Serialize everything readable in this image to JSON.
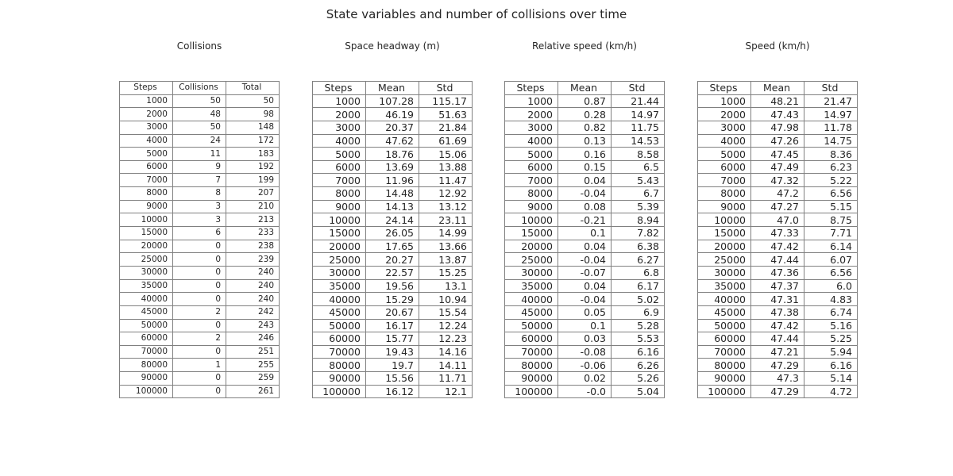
{
  "title": "State variables and number of collisions over time",
  "chart_data": [
    {
      "type": "table",
      "title": "Collisions",
      "columns": [
        "Steps",
        "Collisions",
        "Total"
      ],
      "rows": [
        [
          "1000",
          "50",
          "50"
        ],
        [
          "2000",
          "48",
          "98"
        ],
        [
          "3000",
          "50",
          "148"
        ],
        [
          "4000",
          "24",
          "172"
        ],
        [
          "5000",
          "11",
          "183"
        ],
        [
          "6000",
          "9",
          "192"
        ],
        [
          "7000",
          "7",
          "199"
        ],
        [
          "8000",
          "8",
          "207"
        ],
        [
          "9000",
          "3",
          "210"
        ],
        [
          "10000",
          "3",
          "213"
        ],
        [
          "15000",
          "6",
          "233"
        ],
        [
          "20000",
          "0",
          "238"
        ],
        [
          "25000",
          "0",
          "239"
        ],
        [
          "30000",
          "0",
          "240"
        ],
        [
          "35000",
          "0",
          "240"
        ],
        [
          "40000",
          "0",
          "240"
        ],
        [
          "45000",
          "2",
          "242"
        ],
        [
          "50000",
          "0",
          "243"
        ],
        [
          "60000",
          "2",
          "246"
        ],
        [
          "70000",
          "0",
          "251"
        ],
        [
          "80000",
          "1",
          "255"
        ],
        [
          "90000",
          "0",
          "259"
        ],
        [
          "100000",
          "0",
          "261"
        ]
      ]
    },
    {
      "type": "table",
      "title": "Space headway (m)",
      "columns": [
        "Steps",
        "Mean",
        "Std"
      ],
      "rows": [
        [
          "1000",
          "107.28",
          "115.17"
        ],
        [
          "2000",
          "46.19",
          "51.63"
        ],
        [
          "3000",
          "20.37",
          "21.84"
        ],
        [
          "4000",
          "47.62",
          "61.69"
        ],
        [
          "5000",
          "18.76",
          "15.06"
        ],
        [
          "6000",
          "13.69",
          "13.88"
        ],
        [
          "7000",
          "11.96",
          "11.47"
        ],
        [
          "8000",
          "14.48",
          "12.92"
        ],
        [
          "9000",
          "14.13",
          "13.12"
        ],
        [
          "10000",
          "24.14",
          "23.11"
        ],
        [
          "15000",
          "26.05",
          "14.99"
        ],
        [
          "20000",
          "17.65",
          "13.66"
        ],
        [
          "25000",
          "20.27",
          "13.87"
        ],
        [
          "30000",
          "22.57",
          "15.25"
        ],
        [
          "35000",
          "19.56",
          "13.1"
        ],
        [
          "40000",
          "15.29",
          "10.94"
        ],
        [
          "45000",
          "20.67",
          "15.54"
        ],
        [
          "50000",
          "16.17",
          "12.24"
        ],
        [
          "60000",
          "15.77",
          "12.23"
        ],
        [
          "70000",
          "19.43",
          "14.16"
        ],
        [
          "80000",
          "19.7",
          "14.11"
        ],
        [
          "90000",
          "15.56",
          "11.71"
        ],
        [
          "100000",
          "16.12",
          "12.1"
        ]
      ]
    },
    {
      "type": "table",
      "title": "Relative speed (km/h)",
      "columns": [
        "Steps",
        "Mean",
        "Std"
      ],
      "rows": [
        [
          "1000",
          "0.87",
          "21.44"
        ],
        [
          "2000",
          "0.28",
          "14.97"
        ],
        [
          "3000",
          "0.82",
          "11.75"
        ],
        [
          "4000",
          "0.13",
          "14.53"
        ],
        [
          "5000",
          "0.16",
          "8.58"
        ],
        [
          "6000",
          "0.15",
          "6.5"
        ],
        [
          "7000",
          "0.04",
          "5.43"
        ],
        [
          "8000",
          "-0.04",
          "6.7"
        ],
        [
          "9000",
          "0.08",
          "5.39"
        ],
        [
          "10000",
          "-0.21",
          "8.94"
        ],
        [
          "15000",
          "0.1",
          "7.82"
        ],
        [
          "20000",
          "0.04",
          "6.38"
        ],
        [
          "25000",
          "-0.04",
          "6.27"
        ],
        [
          "30000",
          "-0.07",
          "6.8"
        ],
        [
          "35000",
          "0.04",
          "6.17"
        ],
        [
          "40000",
          "-0.04",
          "5.02"
        ],
        [
          "45000",
          "0.05",
          "6.9"
        ],
        [
          "50000",
          "0.1",
          "5.28"
        ],
        [
          "60000",
          "0.03",
          "5.53"
        ],
        [
          "70000",
          "-0.08",
          "6.16"
        ],
        [
          "80000",
          "-0.06",
          "6.26"
        ],
        [
          "90000",
          "0.02",
          "5.26"
        ],
        [
          "100000",
          "-0.0",
          "5.04"
        ]
      ]
    },
    {
      "type": "table",
      "title": "Speed (km/h)",
      "columns": [
        "Steps",
        "Mean",
        "Std"
      ],
      "rows": [
        [
          "1000",
          "48.21",
          "21.47"
        ],
        [
          "2000",
          "47.43",
          "14.97"
        ],
        [
          "3000",
          "47.98",
          "11.78"
        ],
        [
          "4000",
          "47.26",
          "14.75"
        ],
        [
          "5000",
          "47.45",
          "8.36"
        ],
        [
          "6000",
          "47.49",
          "6.23"
        ],
        [
          "7000",
          "47.32",
          "5.22"
        ],
        [
          "8000",
          "47.2",
          "6.56"
        ],
        [
          "9000",
          "47.27",
          "5.15"
        ],
        [
          "10000",
          "47.0",
          "8.75"
        ],
        [
          "15000",
          "47.33",
          "7.71"
        ],
        [
          "20000",
          "47.42",
          "6.14"
        ],
        [
          "25000",
          "47.44",
          "6.07"
        ],
        [
          "30000",
          "47.36",
          "6.56"
        ],
        [
          "35000",
          "47.37",
          "6.0"
        ],
        [
          "40000",
          "47.31",
          "4.83"
        ],
        [
          "45000",
          "47.38",
          "6.74"
        ],
        [
          "50000",
          "47.42",
          "5.16"
        ],
        [
          "60000",
          "47.44",
          "5.25"
        ],
        [
          "70000",
          "47.21",
          "5.94"
        ],
        [
          "80000",
          "47.29",
          "6.16"
        ],
        [
          "90000",
          "47.3",
          "5.14"
        ],
        [
          "100000",
          "47.29",
          "4.72"
        ]
      ]
    }
  ]
}
